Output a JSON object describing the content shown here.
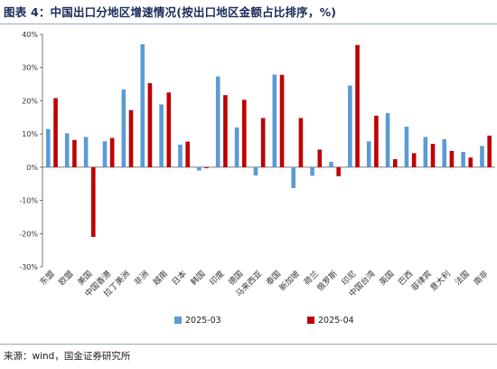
{
  "title": "图表 4：中国出口分地区增速情况(按出口地区金额占比排序，%)",
  "source": "来源：wind，国金证券研究所",
  "chart_data": {
    "type": "bar",
    "categories": [
      "东盟",
      "欧盟",
      "美国",
      "中国香港",
      "拉丁美洲",
      "非洲",
      "越南",
      "日本",
      "韩国",
      "印度",
      "德国",
      "马来西亚",
      "泰国",
      "新加坡",
      "荷兰",
      "俄罗斯",
      "印尼",
      "中国台湾",
      "英国",
      "巴西",
      "菲律宾",
      "意大利",
      "法国",
      "南非"
    ],
    "series": [
      {
        "name": "2025-03",
        "color": "#5b9bd5",
        "values": [
          11.5,
          10.2,
          9.1,
          7.8,
          23.4,
          37.0,
          18.9,
          6.8,
          -1.0,
          27.3,
          12.0,
          -2.5,
          27.9,
          -6.3,
          -2.6,
          1.6,
          24.6,
          7.8,
          16.3,
          12.2,
          9.1,
          8.4,
          4.6,
          6.4
        ]
      },
      {
        "name": "2025-04",
        "color": "#c00000",
        "values": [
          20.8,
          8.2,
          -21.0,
          8.8,
          17.2,
          25.3,
          22.5,
          7.7,
          -0.3,
          21.7,
          20.3,
          14.8,
          27.8,
          14.8,
          5.3,
          -2.7,
          36.8,
          15.5,
          2.4,
          4.2,
          7.0,
          4.9,
          2.9,
          9.5
        ]
      }
    ],
    "ylim": [
      -30,
      40
    ],
    "yticks": [
      "40%",
      "30%",
      "20%",
      "10%",
      "0%",
      "-10%",
      "-20%",
      "-30%"
    ],
    "legend": "bottom-center",
    "grid": false
  }
}
